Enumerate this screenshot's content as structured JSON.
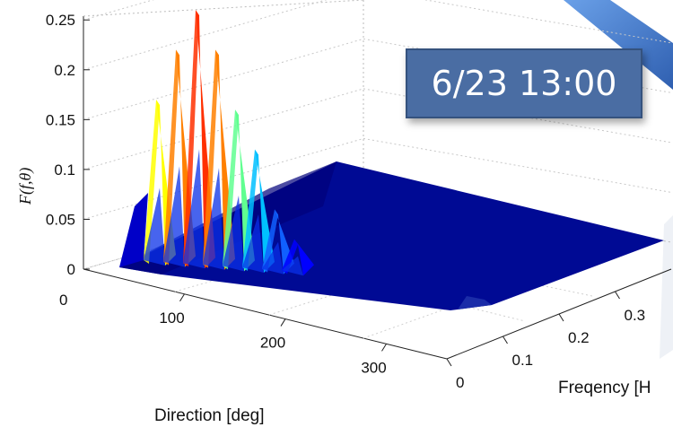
{
  "chart_data": {
    "type": "surface",
    "zlabel": "F(f,θ)",
    "xlabel": "Direction [deg]",
    "ylabel": "Freqency [H",
    "x_ticks": [
      "100",
      "200",
      "300"
    ],
    "y_ticks": [
      "0",
      "0.1",
      "0.2",
      "0.3"
    ],
    "z_ticks": [
      "0",
      "0.05",
      "0.1",
      "0.15",
      "0.2",
      "0.25"
    ],
    "corner_tick": "0",
    "zlim": [
      0,
      0.25
    ],
    "peaks": [
      {
        "direction": 30,
        "value": 0.17
      },
      {
        "direction": 40,
        "value": 0.22
      },
      {
        "direction": 50,
        "value": 0.26
      },
      {
        "direction": 60,
        "value": 0.22
      },
      {
        "direction": 70,
        "value": 0.16
      },
      {
        "direction": 80,
        "value": 0.12
      },
      {
        "direction": 90,
        "value": 0.06
      },
      {
        "direction": 100,
        "value": 0.03
      }
    ],
    "colormap": [
      "#00008f",
      "#0000ff",
      "#1060ff",
      "#00c0ff",
      "#60ff90",
      "#ffff00",
      "#ff8000",
      "#ff3000"
    ]
  },
  "annotation": {
    "date": "6/23 13:00"
  },
  "decor": {
    "ribbon_color": "#3d74c9"
  }
}
